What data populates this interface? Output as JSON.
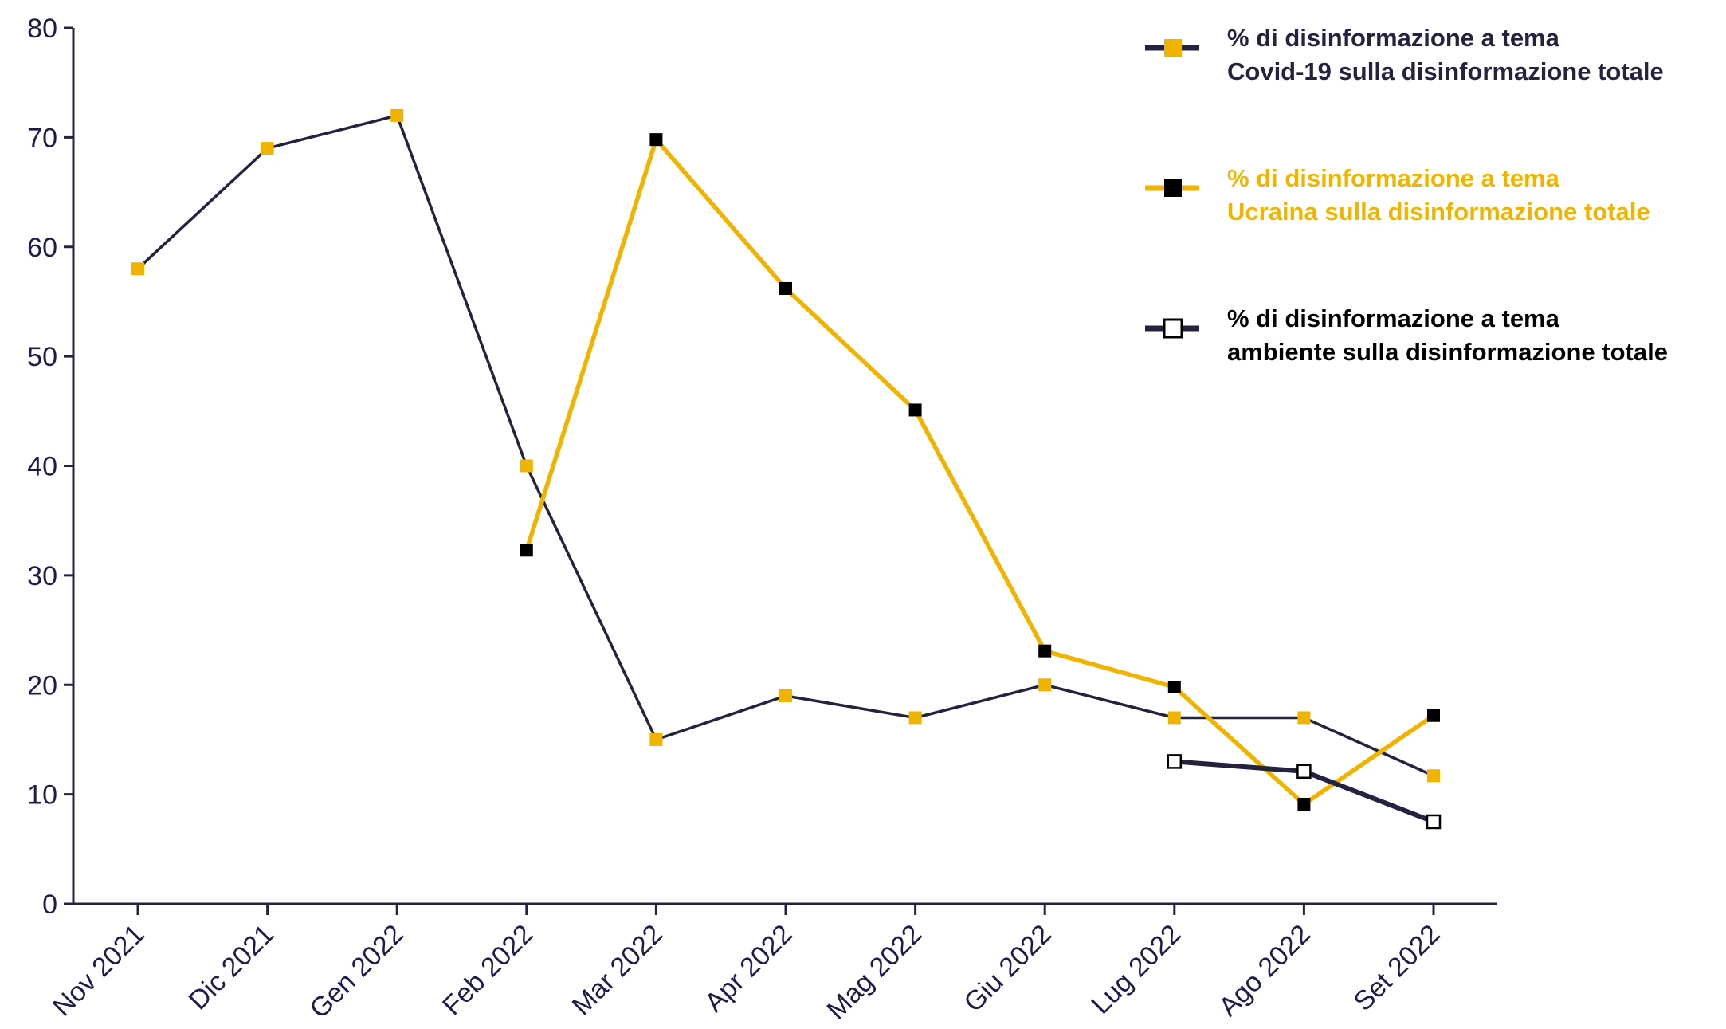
{
  "chart_data": {
    "type": "line",
    "categories": [
      "Nov 2021",
      "Dic 2021",
      "Gen 2022",
      "Feb 2022",
      "Mar 2022",
      "Apr 2022",
      "Mag 2022",
      "Giu 2022",
      "Lug 2022",
      "Ago 2022",
      "Set 2022"
    ],
    "ylim": [
      0,
      80
    ],
    "yticks": [
      "0",
      "10",
      "20",
      "30",
      "40",
      "50",
      "60",
      "70",
      "80"
    ],
    "grid": false,
    "legend_position": "top-right",
    "series": [
      {
        "name_line1": "% di disinformazione a tema",
        "name_line2": "Covid-19 sulla disinformazione totale",
        "values": [
          58,
          69,
          72,
          40,
          15,
          19,
          17,
          20,
          17,
          17,
          11.7
        ],
        "line_color": "#23233f",
        "marker_color": "#f0b400",
        "text_color": "#23233f",
        "marker_style": "filled"
      },
      {
        "name_line1": "% di disinformazione a tema",
        "name_line2": "Ucraina sulla disinformazione totale",
        "values": [
          null,
          null,
          null,
          32.3,
          69.8,
          56.2,
          45.1,
          23.1,
          19.8,
          9.1,
          17.2
        ],
        "line_color": "#f0b400",
        "marker_color": "#000000",
        "text_color": "#f0b400",
        "marker_style": "filled"
      },
      {
        "name_line1": "% di disinformazione a tema",
        "name_line2": "ambiente sulla disinformazione totale",
        "values": [
          null,
          null,
          null,
          null,
          null,
          null,
          null,
          null,
          13,
          12.1,
          7.5
        ],
        "line_color": "#23233f",
        "marker_color": "#ffffff",
        "text_color": "#000000",
        "marker_style": "hollow"
      }
    ]
  }
}
